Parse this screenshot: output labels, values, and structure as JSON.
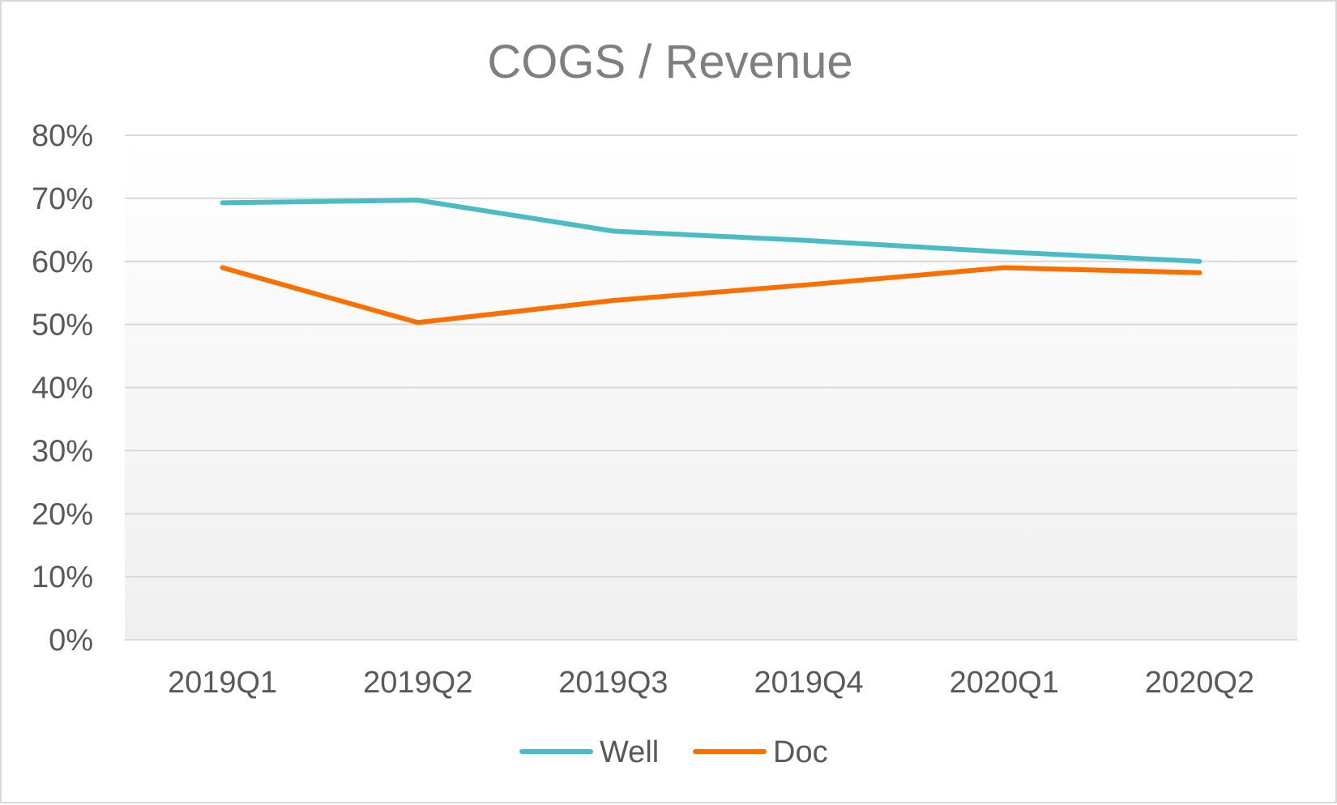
{
  "chart_data": {
    "type": "line",
    "title": "COGS / Revenue",
    "categories": [
      "2019Q1",
      "2019Q2",
      "2019Q3",
      "2019Q4",
      "2020Q1",
      "2020Q2"
    ],
    "series": [
      {
        "name": "Well",
        "color": "#4bbcc4",
        "values": [
          0.693,
          0.697,
          0.648,
          0.633,
          0.615,
          0.6
        ]
      },
      {
        "name": "Doc",
        "color": "#fa7000",
        "values": [
          0.59,
          0.503,
          0.538,
          0.563,
          0.59,
          0.582
        ]
      }
    ],
    "y_ticks": [
      "0%",
      "10%",
      "20%",
      "30%",
      "40%",
      "50%",
      "60%",
      "70%",
      "80%"
    ],
    "ylim": [
      0,
      0.8
    ],
    "grid": true,
    "legend_position": "bottom",
    "colors": {
      "gridline": "#d9d9d9",
      "axis_text": "#595959",
      "title": "#7f7f7f",
      "plot_gradient_top": "#ffffff",
      "plot_gradient_bottom": "#f0f0f0"
    }
  }
}
